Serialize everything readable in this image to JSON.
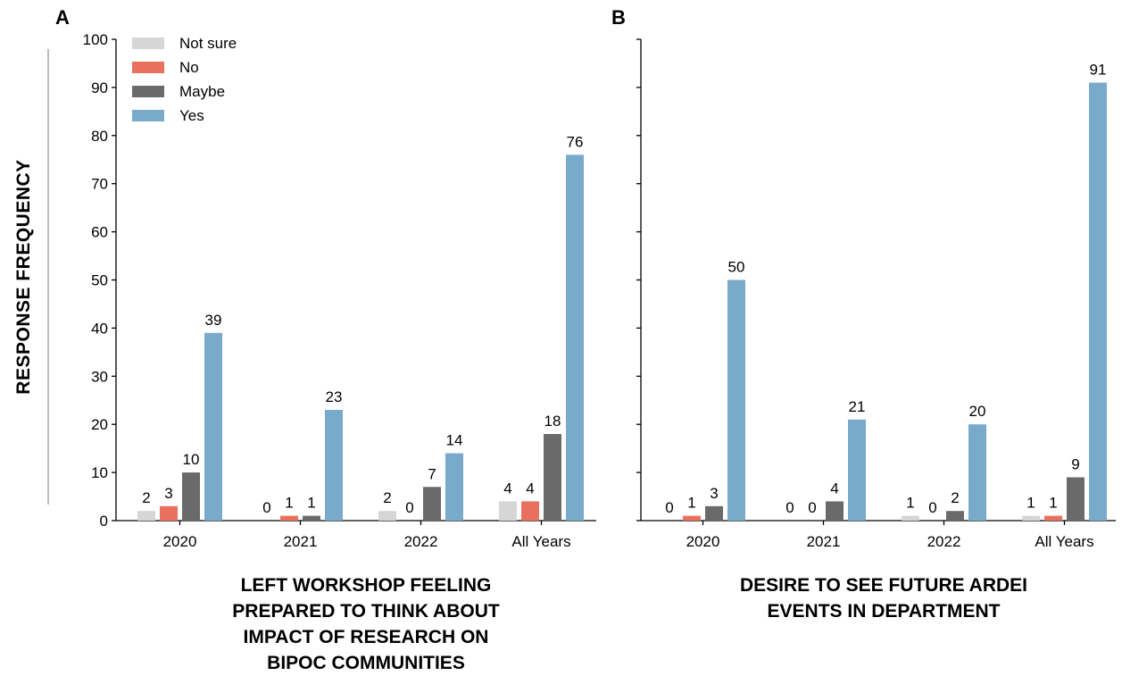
{
  "ylabel": "RESPONSE FREQUENCY",
  "legend": [
    "Not sure",
    "No",
    "Maybe",
    "Yes"
  ],
  "colors": {
    "Not sure": "#d6d6d6",
    "No": "#e8705c",
    "Maybe": "#6a6a6a",
    "Yes": "#79aacb"
  },
  "yticks": [
    "0",
    "10",
    "20",
    "30",
    "40",
    "50",
    "60",
    "70",
    "80",
    "90",
    "100"
  ],
  "chart_data": [
    {
      "type": "bar",
      "panel": "A",
      "title": "LEFT WORKSHOP FEELING\nPREPARED TO THINK ABOUT\nIMPACT OF RESEARCH ON\nBIPOC COMMUNITIES",
      "ylabel": "RESPONSE FREQUENCY",
      "ylim": [
        0,
        100
      ],
      "legend_position": "top-left",
      "categories": [
        "2020",
        "2021",
        "2022",
        "All Years"
      ],
      "series": [
        {
          "name": "Not sure",
          "values": [
            2,
            0,
            2,
            4
          ]
        },
        {
          "name": "No",
          "values": [
            3,
            1,
            0,
            4
          ]
        },
        {
          "name": "Maybe",
          "values": [
            10,
            1,
            7,
            18
          ]
        },
        {
          "name": "Yes",
          "values": [
            39,
            23,
            14,
            76
          ]
        }
      ]
    },
    {
      "type": "bar",
      "panel": "B",
      "title": "DESIRE TO SEE FUTURE ARDEI\nEVENTS IN DEPARTMENT",
      "ylim": [
        0,
        100
      ],
      "categories": [
        "2020",
        "2021",
        "2022",
        "All Years"
      ],
      "series": [
        {
          "name": "Not sure",
          "values": [
            0,
            0,
            1,
            1
          ]
        },
        {
          "name": "No",
          "values": [
            1,
            0,
            0,
            1
          ]
        },
        {
          "name": "Maybe",
          "values": [
            3,
            4,
            2,
            9
          ]
        },
        {
          "name": "Yes",
          "values": [
            50,
            21,
            20,
            91
          ]
        }
      ]
    }
  ]
}
